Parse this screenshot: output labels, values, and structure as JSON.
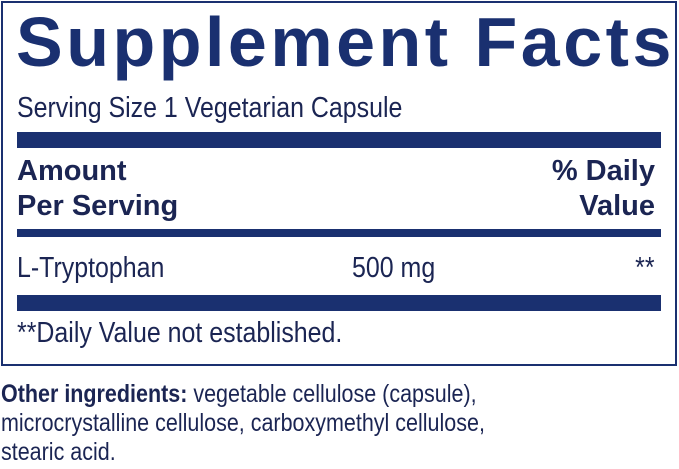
{
  "panel": {
    "title": "Supplement Facts",
    "serving_size": "Serving Size 1 Vegetarian Capsule",
    "header": {
      "amount_line1": "Amount",
      "amount_line2": "Per Serving",
      "dv_line1": "% Daily",
      "dv_line2": "Value"
    },
    "rows": [
      {
        "name": "L-Tryptophan",
        "amount": "500 mg",
        "dv": "**"
      }
    ],
    "footnote": "**Daily Value not established."
  },
  "other_ingredients": {
    "label": "Other ingredients:",
    "line1": " vegetable cellulose (capsule),",
    "line2": "microcrystalline cellulose, carboxymethyl cellulose,",
    "line3": "stearic acid."
  },
  "colors": {
    "label_blue": "#1a3070",
    "text": "#1b2553"
  }
}
